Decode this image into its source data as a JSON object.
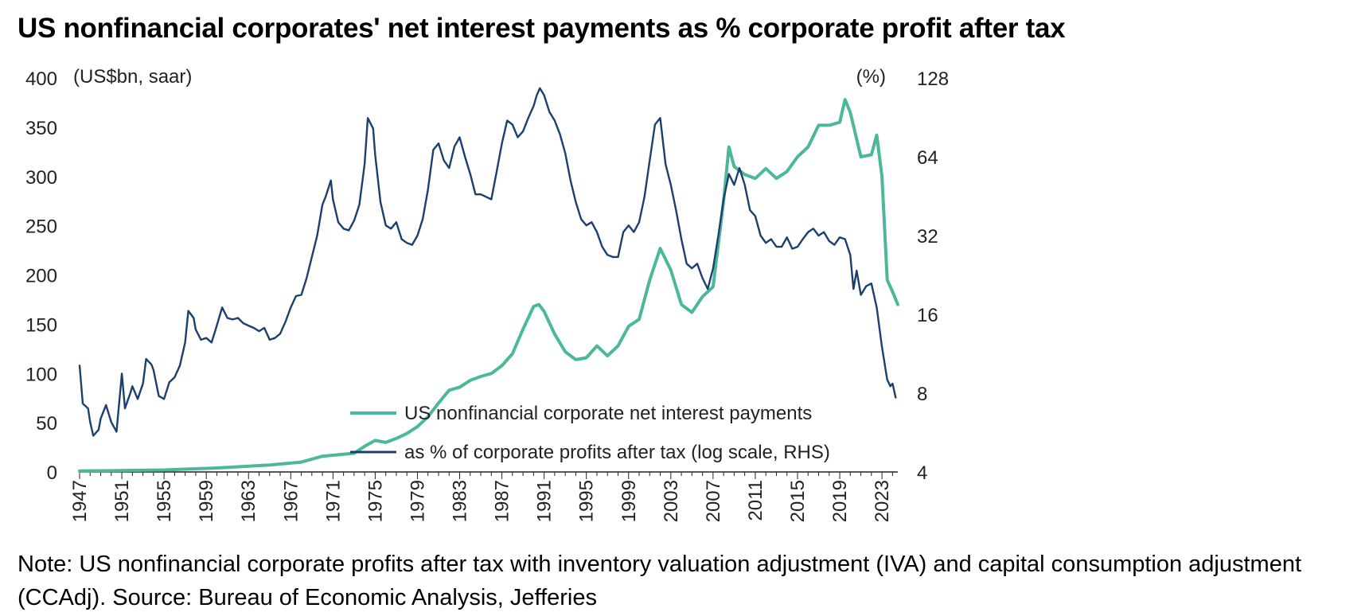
{
  "title": "US nonfinancial corporates' net interest payments as % corporate profit after tax",
  "note": "Note: US nonfinancial corporate profits after tax with inventory valuation adjustment (IVA) and capital consumption adjustment (CCAdj). Source: Bureau of Economic Analysis, Jefferies",
  "colors": {
    "interest": "#4cb89b",
    "ratio": "#1c3f6e",
    "axis": "#222222"
  },
  "chart_data": {
    "type": "line",
    "left_unit": "(US$bn, saar)",
    "right_unit": "(%)",
    "ylim_left": [
      0,
      400
    ],
    "ylim_right": [
      4,
      128
    ],
    "right_scale": "log2",
    "xlim": [
      1947,
      2024.5
    ],
    "left_ticks": [
      "400",
      "350",
      "300",
      "250",
      "200",
      "150",
      "100",
      "50",
      "0"
    ],
    "right_ticks": [
      "128",
      "64",
      "32",
      "16",
      "8",
      "4"
    ],
    "x_ticks": [
      "1947",
      "1951",
      "1955",
      "1959",
      "1963",
      "1967",
      "1971",
      "1975",
      "1979",
      "1983",
      "1987",
      "1991",
      "1995",
      "1999",
      "2003",
      "2007",
      "2011",
      "2015",
      "2019",
      "2023"
    ],
    "legend": [
      "US nonfinancial corporate net interest payments",
      "as % of corporate profits after tax (log scale, RHS)"
    ],
    "series": [
      {
        "name": "US nonfinancial corporate net interest payments",
        "axis": "left",
        "points": [
          [
            1947,
            1
          ],
          [
            1955,
            2
          ],
          [
            1960,
            4
          ],
          [
            1965,
            7
          ],
          [
            1968,
            10
          ],
          [
            1970,
            16
          ],
          [
            1972,
            18
          ],
          [
            1973,
            19
          ],
          [
            1974,
            26
          ],
          [
            1975,
            32
          ],
          [
            1976,
            30
          ],
          [
            1977,
            34
          ],
          [
            1978,
            39
          ],
          [
            1979,
            46
          ],
          [
            1980,
            56
          ],
          [
            1981,
            70
          ],
          [
            1982,
            83
          ],
          [
            1983,
            86
          ],
          [
            1984,
            93
          ],
          [
            1985,
            97
          ],
          [
            1986,
            100
          ],
          [
            1987,
            108
          ],
          [
            1988,
            120
          ],
          [
            1989,
            145
          ],
          [
            1990,
            168
          ],
          [
            1990.5,
            170
          ],
          [
            1991,
            163
          ],
          [
            1992,
            140
          ],
          [
            1993,
            122
          ],
          [
            1994,
            114
          ],
          [
            1995,
            116
          ],
          [
            1996,
            128
          ],
          [
            1997,
            118
          ],
          [
            1998,
            128
          ],
          [
            1999,
            148
          ],
          [
            2000,
            155
          ],
          [
            2001,
            195
          ],
          [
            2002,
            227
          ],
          [
            2003,
            205
          ],
          [
            2004,
            170
          ],
          [
            2005,
            162
          ],
          [
            2006,
            178
          ],
          [
            2007,
            188
          ],
          [
            2008,
            275
          ],
          [
            2008.5,
            330
          ],
          [
            2009,
            310
          ],
          [
            2010,
            302
          ],
          [
            2011,
            298
          ],
          [
            2012,
            308
          ],
          [
            2013,
            298
          ],
          [
            2014,
            305
          ],
          [
            2015,
            320
          ],
          [
            2016,
            330
          ],
          [
            2017,
            352
          ],
          [
            2018,
            352
          ],
          [
            2019,
            355
          ],
          [
            2019.5,
            378
          ],
          [
            2020,
            365
          ],
          [
            2021,
            320
          ],
          [
            2022,
            322
          ],
          [
            2022.5,
            342
          ],
          [
            2023,
            300
          ],
          [
            2023.5,
            195
          ],
          [
            2024,
            183
          ],
          [
            2024.5,
            170
          ]
        ]
      },
      {
        "name": "as % of corporate profits after tax (log scale, RHS)",
        "axis": "right",
        "points": [
          [
            1947,
            10.2
          ],
          [
            1947.3,
            7.3
          ],
          [
            1947.8,
            7.0
          ],
          [
            1948,
            6.2
          ],
          [
            1948.3,
            5.5
          ],
          [
            1948.8,
            5.8
          ],
          [
            1949,
            6.4
          ],
          [
            1949.5,
            7.2
          ],
          [
            1950,
            6.2
          ],
          [
            1950.5,
            5.7
          ],
          [
            1951,
            9.5
          ],
          [
            1951.3,
            7.0
          ],
          [
            1951.8,
            8.0
          ],
          [
            1952,
            8.5
          ],
          [
            1952.5,
            7.6
          ],
          [
            1953,
            8.7
          ],
          [
            1953.3,
            10.8
          ],
          [
            1953.8,
            10.3
          ],
          [
            1954,
            9.8
          ],
          [
            1954.5,
            7.8
          ],
          [
            1955,
            7.6
          ],
          [
            1955.5,
            8.8
          ],
          [
            1956,
            9.2
          ],
          [
            1956.5,
            10.2
          ],
          [
            1957,
            12.5
          ],
          [
            1957.3,
            16.5
          ],
          [
            1957.8,
            15.5
          ],
          [
            1958,
            14.0
          ],
          [
            1958.5,
            12.8
          ],
          [
            1959,
            13.0
          ],
          [
            1959.5,
            12.5
          ],
          [
            1960,
            14.5
          ],
          [
            1960.5,
            17.0
          ],
          [
            1961,
            15.5
          ],
          [
            1961.5,
            15.3
          ],
          [
            1962,
            15.5
          ],
          [
            1962.5,
            14.8
          ],
          [
            1963,
            14.5
          ],
          [
            1963.5,
            14.2
          ],
          [
            1964,
            13.8
          ],
          [
            1964.5,
            14.2
          ],
          [
            1965,
            12.8
          ],
          [
            1965.5,
            13.0
          ],
          [
            1966,
            13.5
          ],
          [
            1966.5,
            15.0
          ],
          [
            1967,
            17.0
          ],
          [
            1967.5,
            18.8
          ],
          [
            1968,
            19.0
          ],
          [
            1968.5,
            22.0
          ],
          [
            1969,
            26.5
          ],
          [
            1969.5,
            32.0
          ],
          [
            1970,
            42.0
          ],
          [
            1970.3,
            45.0
          ],
          [
            1970.8,
            52.0
          ],
          [
            1971,
            44.0
          ],
          [
            1971.5,
            36.0
          ],
          [
            1972,
            34.0
          ],
          [
            1972.5,
            33.5
          ],
          [
            1973,
            36.5
          ],
          [
            1973.5,
            42.0
          ],
          [
            1974,
            60.0
          ],
          [
            1974.3,
            90.0
          ],
          [
            1974.8,
            82.0
          ],
          [
            1975,
            65.0
          ],
          [
            1975.5,
            43.0
          ],
          [
            1976,
            35.0
          ],
          [
            1976.5,
            34.0
          ],
          [
            1977,
            36.0
          ],
          [
            1977.5,
            31.0
          ],
          [
            1978,
            30.0
          ],
          [
            1978.5,
            29.5
          ],
          [
            1979,
            32.0
          ],
          [
            1979.5,
            37.0
          ],
          [
            1980,
            48.0
          ],
          [
            1980.5,
            68.0
          ],
          [
            1981,
            72.0
          ],
          [
            1981.5,
            62.0
          ],
          [
            1982,
            58.0
          ],
          [
            1982.5,
            70.0
          ],
          [
            1983,
            76.0
          ],
          [
            1983.5,
            64.0
          ],
          [
            1984,
            55.0
          ],
          [
            1984.5,
            46.0
          ],
          [
            1985,
            46.0
          ],
          [
            1985.5,
            45.0
          ],
          [
            1986,
            44.0
          ],
          [
            1986.5,
            56.0
          ],
          [
            1987,
            72.0
          ],
          [
            1987.5,
            88.0
          ],
          [
            1988,
            85.0
          ],
          [
            1988.5,
            76.0
          ],
          [
            1989,
            80.0
          ],
          [
            1989.5,
            90.0
          ],
          [
            1990,
            100.0
          ],
          [
            1990.3,
            110.0
          ],
          [
            1990.6,
            117.0
          ],
          [
            1991,
            110.0
          ],
          [
            1991.5,
            95.0
          ],
          [
            1992,
            88.0
          ],
          [
            1992.5,
            78.0
          ],
          [
            1993,
            66.0
          ],
          [
            1993.5,
            52.0
          ],
          [
            1994,
            43.0
          ],
          [
            1994.5,
            37.0
          ],
          [
            1995,
            35.0
          ],
          [
            1995.5,
            36.0
          ],
          [
            1996,
            33.0
          ],
          [
            1996.5,
            29.0
          ],
          [
            1997,
            27.0
          ],
          [
            1997.5,
            26.5
          ],
          [
            1998,
            26.5
          ],
          [
            1998.5,
            33.0
          ],
          [
            1999,
            35.0
          ],
          [
            1999.5,
            33.0
          ],
          [
            2000,
            36.0
          ],
          [
            2000.5,
            45.0
          ],
          [
            2001,
            62.0
          ],
          [
            2001.5,
            85.0
          ],
          [
            2002,
            90.0
          ],
          [
            2002.5,
            60.0
          ],
          [
            2003,
            50.0
          ],
          [
            2003.5,
            40.0
          ],
          [
            2004,
            31.0
          ],
          [
            2004.5,
            25.0
          ],
          [
            2005,
            24.0
          ],
          [
            2005.5,
            25.0
          ],
          [
            2006,
            22.0
          ],
          [
            2006.5,
            20.0
          ],
          [
            2007,
            24.0
          ],
          [
            2007.5,
            32.0
          ],
          [
            2008,
            44.0
          ],
          [
            2008.5,
            55.0
          ],
          [
            2009,
            50.0
          ],
          [
            2009.5,
            58.0
          ],
          [
            2010,
            50.0
          ],
          [
            2010.5,
            40.0
          ],
          [
            2011,
            38.0
          ],
          [
            2011.5,
            32.0
          ],
          [
            2012,
            30.0
          ],
          [
            2012.5,
            31.0
          ],
          [
            2013,
            29.0
          ],
          [
            2013.5,
            29.0
          ],
          [
            2014,
            31.5
          ],
          [
            2014.5,
            28.5
          ],
          [
            2015,
            29.0
          ],
          [
            2015.5,
            31.0
          ],
          [
            2016,
            33.0
          ],
          [
            2016.5,
            34.0
          ],
          [
            2017,
            32.0
          ],
          [
            2017.5,
            33.0
          ],
          [
            2018,
            30.5
          ],
          [
            2018.5,
            29.5
          ],
          [
            2019,
            31.5
          ],
          [
            2019.5,
            31.0
          ],
          [
            2020,
            27.0
          ],
          [
            2020.3,
            20.0
          ],
          [
            2020.6,
            23.5
          ],
          [
            2021,
            19.0
          ],
          [
            2021.5,
            20.5
          ],
          [
            2022,
            21.0
          ],
          [
            2022.5,
            17.0
          ],
          [
            2023,
            12.0
          ],
          [
            2023.5,
            9.0
          ],
          [
            2023.8,
            8.5
          ],
          [
            2024,
            8.7
          ],
          [
            2024.3,
            7.7
          ]
        ]
      }
    ]
  }
}
